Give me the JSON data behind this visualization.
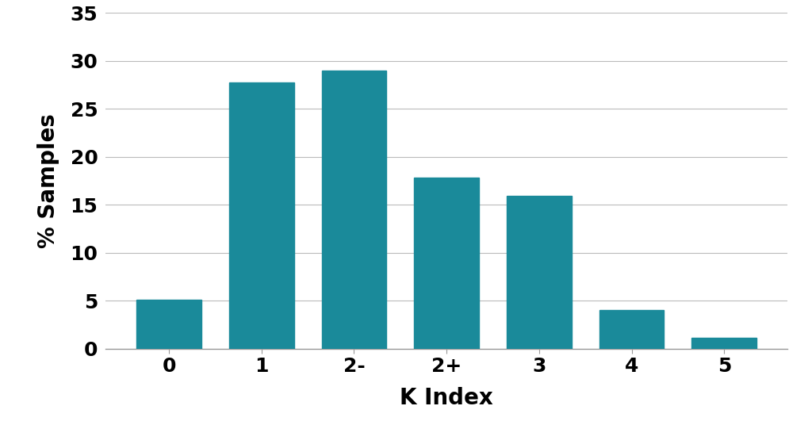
{
  "categories": [
    "0",
    "1",
    "2-",
    "2+",
    "3",
    "4",
    "5"
  ],
  "values": [
    5.1,
    27.7,
    29.0,
    17.8,
    15.9,
    4.0,
    1.1
  ],
  "bar_color": "#1a8a9a",
  "xlabel": "K Index",
  "ylabel": "% Samples",
  "ylim": [
    0,
    35
  ],
  "yticks": [
    0,
    5,
    10,
    15,
    20,
    25,
    30,
    35
  ],
  "background_color": "#ffffff",
  "grid_color": "#bbbbbb",
  "xlabel_fontsize": 20,
  "ylabel_fontsize": 20,
  "tick_fontsize": 18,
  "bar_width": 0.7,
  "text_color": "#000000",
  "font_weight": "bold"
}
